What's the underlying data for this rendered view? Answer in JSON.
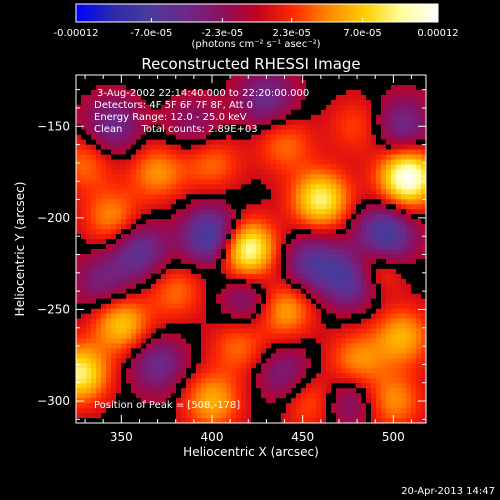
{
  "colorbar": {
    "tick_labels": [
      "-0.00012",
      "-7.0e-05",
      "-2.3e-05",
      "2.3e-05",
      "7.0e-05",
      "0.00012"
    ],
    "tick_values": [
      -0.00012,
      -7e-05,
      -2.3e-05,
      2.3e-05,
      7e-05,
      0.00012
    ],
    "unit_label": "(photons cm⁻² s⁻¹ asec⁻²)",
    "range": [
      -0.00012,
      0.00012
    ],
    "colormap": [
      "#0000ff",
      "#2a2aaa",
      "#4a3a9a",
      "#6a2a8a",
      "#8a1060",
      "#c00020",
      "#ff2a00",
      "#ff8a00",
      "#ffd000",
      "#ffffa0",
      "#ffffff"
    ]
  },
  "title": "Reconstructed RHESSI Image",
  "info_lines": [
    "3-Aug-2002 22:14:40.000 to 22:20:00.000",
    "Detectors: 4F 5F 6F 7F 8F, Att 0",
    "Energy Range: 12.0 - 25.0 keV",
    "Clean      Total counts: 2.89E+03"
  ],
  "peak_label": "Position of Peak = [508,-178]",
  "footer_timestamp": "20-Apr-2013 14:47",
  "chart_data": {
    "type": "heatmap",
    "title": "Reconstructed RHESSI Image",
    "xlabel": "Heliocentric X (arcsec)",
    "ylabel": "Heliocentric Y (arcsec)",
    "xlim": [
      325,
      518
    ],
    "ylim": [
      -312,
      -122
    ],
    "x_ticks": [
      350,
      400,
      450,
      500
    ],
    "x_tick_labels": [
      "350",
      "400",
      "450",
      "500"
    ],
    "y_ticks": [
      -300,
      -250,
      -200,
      -150
    ],
    "y_tick_labels": [
      "−300",
      "−250",
      "−200",
      "−150"
    ],
    "peak": [
      508,
      -178
    ],
    "features": [
      {
        "kind": "bright",
        "x": 419,
        "y": -217,
        "intensity": 0.00011
      },
      {
        "kind": "bright",
        "x": 508,
        "y": -178,
        "intensity": 0.00012
      },
      {
        "kind": "bright",
        "x": 460,
        "y": -190,
        "intensity": 9e-05
      },
      {
        "kind": "bright",
        "x": 487,
        "y": -227,
        "intensity": 8e-05
      },
      {
        "kind": "bright",
        "x": 327,
        "y": -285,
        "intensity": 9e-05
      },
      {
        "kind": "bright",
        "x": 350,
        "y": -258,
        "intensity": 7e-05
      },
      {
        "kind": "bright",
        "x": 400,
        "y": -300,
        "intensity": 6e-05
      },
      {
        "kind": "bright",
        "x": 440,
        "y": -250,
        "intensity": 6e-05
      },
      {
        "kind": "bright",
        "x": 480,
        "y": -278,
        "intensity": 5e-05
      },
      {
        "kind": "bright",
        "x": 370,
        "y": -175,
        "intensity": 5e-05
      },
      {
        "kind": "bright",
        "x": 345,
        "y": -200,
        "intensity": 5e-05
      },
      {
        "kind": "bright",
        "x": 400,
        "y": -170,
        "intensity": 4e-05
      },
      {
        "kind": "bright",
        "x": 440,
        "y": -160,
        "intensity": 4e-05
      },
      {
        "kind": "bright",
        "x": 380,
        "y": -240,
        "intensity": 4e-05
      },
      {
        "kind": "bright",
        "x": 505,
        "y": -265,
        "intensity": 6e-05
      },
      {
        "kind": "bright",
        "x": 415,
        "y": -270,
        "intensity": 4e-05
      },
      {
        "kind": "bright",
        "x": 455,
        "y": -300,
        "intensity": 4e-05
      },
      {
        "kind": "bright",
        "x": 500,
        "y": -300,
        "intensity": 5e-05
      },
      {
        "kind": "bright",
        "x": 330,
        "y": -170,
        "intensity": 4e-05
      },
      {
        "kind": "bright",
        "x": 480,
        "y": -150,
        "intensity": 3e-05
      },
      {
        "kind": "dark",
        "x": 400,
        "y": -210,
        "intensity": -9e-05
      },
      {
        "kind": "dark",
        "x": 478,
        "y": -232,
        "intensity": -0.0001
      },
      {
        "kind": "dark",
        "x": 495,
        "y": -210,
        "intensity": -9e-05
      },
      {
        "kind": "dark",
        "x": 360,
        "y": -218,
        "intensity": -6e-05
      },
      {
        "kind": "dark",
        "x": 455,
        "y": -225,
        "intensity": -6e-05
      },
      {
        "kind": "dark",
        "x": 370,
        "y": -280,
        "intensity": -5e-05
      },
      {
        "kind": "dark",
        "x": 420,
        "y": -245,
        "intensity": -4e-05
      },
      {
        "kind": "dark",
        "x": 340,
        "y": -235,
        "intensity": -4e-05
      },
      {
        "kind": "dark",
        "x": 505,
        "y": -150,
        "intensity": -5e-05
      },
      {
        "kind": "dark",
        "x": 345,
        "y": -150,
        "intensity": -5e-05
      },
      {
        "kind": "dark",
        "x": 430,
        "y": -135,
        "intensity": -5e-05
      },
      {
        "kind": "dark",
        "x": 475,
        "y": -300,
        "intensity": -4e-05
      },
      {
        "kind": "dark",
        "x": 440,
        "y": -285,
        "intensity": -4e-05
      },
      {
        "kind": "dark",
        "x": 390,
        "y": -150,
        "intensity": -3e-05
      }
    ]
  }
}
